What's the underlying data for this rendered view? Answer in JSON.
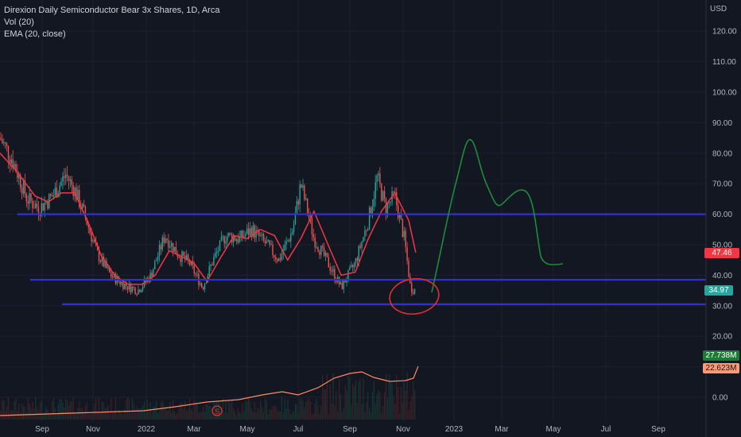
{
  "legend": {
    "title": "Direxion Daily Semiconductor Bear 3x Shares, 1D, Arca",
    "vol": "Vol (20)",
    "ema": "EMA (20, close)"
  },
  "axis": {
    "currency": "USD",
    "price_ticks": [
      120,
      110,
      100,
      90,
      80,
      70,
      60,
      50,
      40,
      30,
      20,
      10,
      0
    ],
    "price_tick_labels": [
      "120.00",
      "110.00",
      "100.00",
      "90.00",
      "80.00",
      "70.00",
      "60.00",
      "50.00",
      "40.00",
      "30.00",
      "20.00",
      "10.00",
      "0.00"
    ],
    "time_labels": [
      "Sep",
      "Nov",
      "2022",
      "Mar",
      "May",
      "Jul",
      "Sep",
      "Nov",
      "2023",
      "Mar",
      "May",
      "Jul",
      "Sep"
    ]
  },
  "tags": {
    "ema_value": "47.46",
    "close_value": "34.97",
    "volume_value": "27.738M",
    "volume_ma_value": "22.623M"
  },
  "colors": {
    "background": "#131722",
    "up_candle": "#26a69a",
    "down_candle": "#ef5350",
    "ema_line": "#f23645",
    "support_line": "#2f2fd8",
    "drawing_green": "#1e8a3a",
    "drawing_circle": "#e03030",
    "vol_ma_line": "#ff8a65",
    "ema_tag": "#f23645",
    "close_tag": "#26a69a",
    "volume_tag": "#1f7a3a",
    "volume_ma_tag": "#ff9a75"
  },
  "dividend_marker": "S",
  "chart_data": {
    "type": "candlestick",
    "title": "Direxion Daily Semiconductor Bear 3x Shares, 1D, Arca",
    "y_unit": "USD",
    "ylim": [
      -5,
      128
    ],
    "x_range": [
      "2021-08-01",
      "2023-10-15"
    ],
    "series": [
      {
        "name": "EMA (20, close)",
        "points": [
          [
            "2021-08-01",
            80
          ],
          [
            "2021-08-20",
            74
          ],
          [
            "2021-09-10",
            66
          ],
          [
            "2021-09-25",
            64
          ],
          [
            "2021-10-10",
            67
          ],
          [
            "2021-10-25",
            67
          ],
          [
            "2021-11-10",
            57
          ],
          [
            "2021-11-25",
            46
          ],
          [
            "2021-12-10",
            40
          ],
          [
            "2021-12-25",
            37
          ],
          [
            "2022-01-10",
            37
          ],
          [
            "2022-01-25",
            40
          ],
          [
            "2022-02-10",
            48
          ],
          [
            "2022-02-25",
            46
          ],
          [
            "2022-03-10",
            44
          ],
          [
            "2022-03-25",
            38
          ],
          [
            "2022-04-10",
            46
          ],
          [
            "2022-04-25",
            53
          ],
          [
            "2022-05-10",
            52
          ],
          [
            "2022-05-25",
            55
          ],
          [
            "2022-06-10",
            53
          ],
          [
            "2022-06-25",
            45
          ],
          [
            "2022-07-10",
            52
          ],
          [
            "2022-07-25",
            61
          ],
          [
            "2022-08-10",
            50
          ],
          [
            "2022-08-25",
            40
          ],
          [
            "2022-09-10",
            41
          ],
          [
            "2022-09-25",
            52
          ],
          [
            "2022-10-10",
            61
          ],
          [
            "2022-10-25",
            67
          ],
          [
            "2022-11-10",
            58
          ],
          [
            "2022-11-18",
            47.46
          ]
        ]
      },
      {
        "name": "Close",
        "points": [
          [
            "2021-08-01",
            85
          ],
          [
            "2021-08-15",
            78
          ],
          [
            "2021-09-01",
            65
          ],
          [
            "2021-09-15",
            62
          ],
          [
            "2021-09-30",
            66
          ],
          [
            "2021-10-15",
            73
          ],
          [
            "2021-10-25",
            68
          ],
          [
            "2021-11-05",
            60
          ],
          [
            "2021-11-20",
            47
          ],
          [
            "2021-12-05",
            40
          ],
          [
            "2021-12-20",
            37
          ],
          [
            "2022-01-05",
            35
          ],
          [
            "2022-01-20",
            40
          ],
          [
            "2022-02-05",
            53
          ],
          [
            "2022-02-20",
            47
          ],
          [
            "2022-03-05",
            44
          ],
          [
            "2022-03-20",
            36
          ],
          [
            "2022-04-01",
            45
          ],
          [
            "2022-04-15",
            53
          ],
          [
            "2022-05-01",
            52
          ],
          [
            "2022-05-15",
            55
          ],
          [
            "2022-06-01",
            50
          ],
          [
            "2022-06-15",
            45
          ],
          [
            "2022-07-01",
            55
          ],
          [
            "2022-07-10",
            70
          ],
          [
            "2022-07-25",
            52
          ],
          [
            "2022-08-10",
            44
          ],
          [
            "2022-08-25",
            36
          ],
          [
            "2022-09-10",
            44
          ],
          [
            "2022-09-25",
            58
          ],
          [
            "2022-10-05",
            72
          ],
          [
            "2022-10-15",
            62
          ],
          [
            "2022-10-25",
            66
          ],
          [
            "2022-11-05",
            52
          ],
          [
            "2022-11-12",
            36
          ],
          [
            "2022-11-18",
            34.97
          ]
        ]
      }
    ],
    "volume": {
      "name": "Vol (20)",
      "last": "27.738M",
      "ma_last": "22.623M"
    },
    "horizontal_lines": [
      60,
      38.5,
      30.5
    ]
  }
}
